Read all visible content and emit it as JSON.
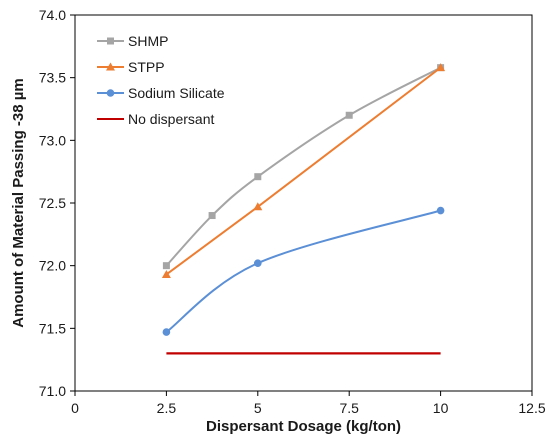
{
  "chart_data": {
    "type": "line",
    "title": "",
    "xlabel": "Dispersant Dosage (kg/ton)",
    "ylabel": "Amount of Material Passing -38 µm",
    "xlim": [
      0,
      12.5
    ],
    "ylim": [
      71.0,
      74.0
    ],
    "x_ticks": [
      0,
      2.5,
      5,
      7.5,
      10,
      12.5
    ],
    "x_tick_labels": [
      "0",
      "2.5",
      "5",
      "7.5",
      "10",
      "12.5"
    ],
    "y_ticks": [
      71.0,
      71.5,
      72.0,
      72.5,
      73.0,
      73.5,
      74.0
    ],
    "y_tick_labels": [
      "71.0",
      "71.5",
      "72.0",
      "72.5",
      "73.0",
      "73.5",
      "74.0"
    ],
    "grid": false,
    "legend_position": "top-left",
    "series": [
      {
        "name": "SHMP",
        "color": "#a5a5a5",
        "marker": "square",
        "smooth": true,
        "x": [
          2.5,
          3.75,
          5,
          7.5,
          10
        ],
        "y": [
          72.0,
          72.4,
          72.71,
          73.2,
          73.58
        ]
      },
      {
        "name": "STPP",
        "color": "#ed7d31",
        "marker": "triangle",
        "smooth": false,
        "x": [
          2.5,
          5,
          10
        ],
        "y": [
          71.93,
          72.47,
          73.58
        ]
      },
      {
        "name": "Sodium Silicate",
        "color": "#5b8fd6",
        "marker": "circle",
        "smooth": true,
        "x": [
          2.5,
          5,
          10
        ],
        "y": [
          71.47,
          72.02,
          72.44
        ]
      },
      {
        "name": "No dispersant",
        "color": "#c00000",
        "marker": "none",
        "smooth": false,
        "x": [
          2.5,
          10
        ],
        "y": [
          71.3,
          71.3
        ]
      }
    ]
  }
}
